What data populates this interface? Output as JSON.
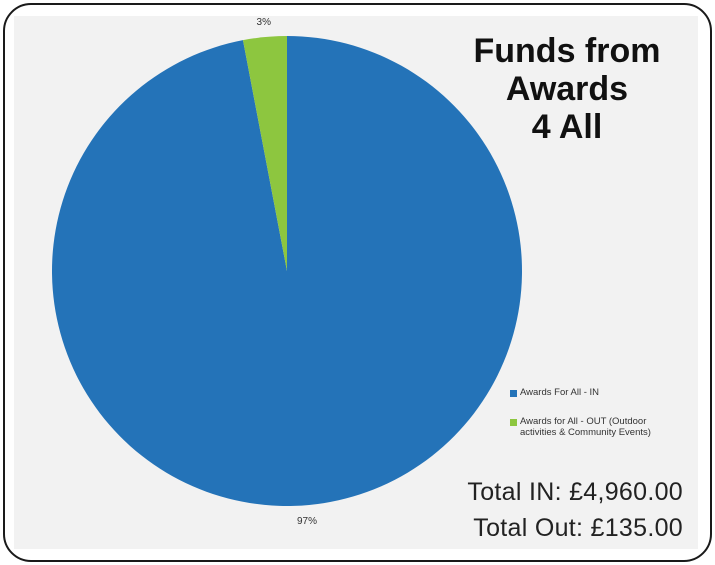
{
  "title_lines": [
    "Funds from",
    "Awards",
    "4 All"
  ],
  "colors": {
    "in": "#2473b8",
    "out": "#8dc63f",
    "background": "#f2f2f2"
  },
  "chart_data": {
    "type": "pie",
    "slices": [
      {
        "label": "Awards For All - IN",
        "value": 97,
        "display": "97%",
        "color": "#2473b8"
      },
      {
        "label": "Awards for All - OUT (Outdoor activities & Community Events)",
        "value": 3,
        "display": "3%",
        "color": "#8dc63f"
      }
    ],
    "legend_position": "right"
  },
  "legend": {
    "items": [
      {
        "line1": "Awards For All - IN",
        "line2": ""
      },
      {
        "line1": "Awards for All - OUT (Outdoor",
        "line2": "activities & Community Events)"
      }
    ]
  },
  "totals": {
    "in_text": "Total IN: £4,960.00",
    "out_text": "Total Out: £135.00"
  }
}
